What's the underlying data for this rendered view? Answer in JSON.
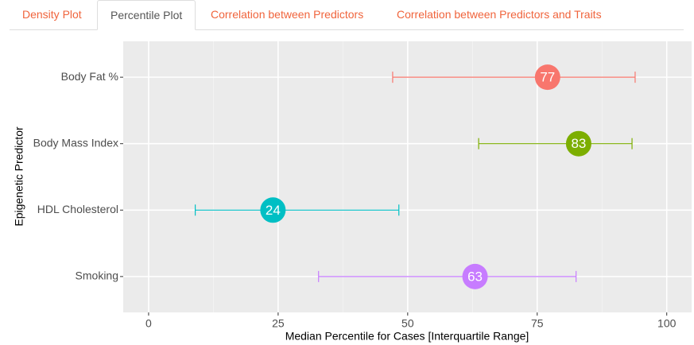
{
  "tabs": [
    {
      "label": "Density Plot"
    },
    {
      "label": "Percentile Plot",
      "active": true
    },
    {
      "label": "Correlation between Predictors"
    },
    {
      "label": "Correlation between Predictors and Traits"
    }
  ],
  "chart_data": {
    "type": "errorbar-dot",
    "x_label": "Median Percentile for Cases [Interquartile Range]",
    "y_label": "Epigenetic Predictor",
    "categories": [
      "Body Fat %",
      "Body Mass Index",
      "HDL Cholesterol",
      "Smoking"
    ],
    "values": [
      77,
      83,
      24,
      63
    ],
    "lower": [
      47.1,
      63.7,
      9.0,
      32.8
    ],
    "upper": [
      93.9,
      93.3,
      48.3,
      82.5
    ],
    "colors": [
      "#f8766d",
      "#7cae00",
      "#00bfc4",
      "#c77cff"
    ],
    "xlim": [
      -4.9,
      104.8
    ],
    "xticks": [
      0,
      25,
      50,
      75,
      100
    ],
    "grid": true
  }
}
